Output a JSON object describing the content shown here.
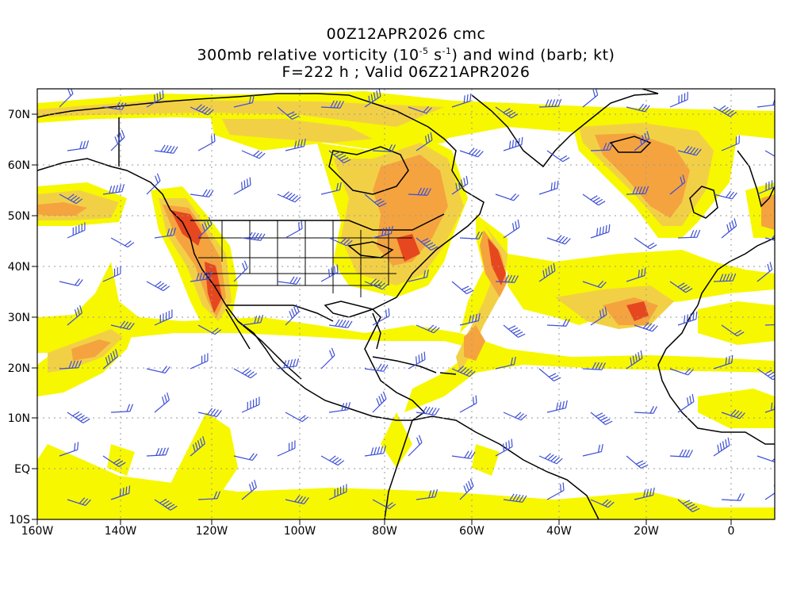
{
  "title": {
    "line1": "00Z12APR2026 cmc",
    "line2_pre": "300mb relative vorticity (10",
    "line2_sup1": "-5",
    "line2_mid": " s",
    "line2_sup2": "-1",
    "line2_post": ") and wind (barb; kt)",
    "line3": "F=222 h ; Valid 06Z21APR2026"
  },
  "axes": {
    "lon_ticks": [
      "160W",
      "140W",
      "120W",
      "100W",
      "80W",
      "60W",
      "40W",
      "20W",
      "0"
    ],
    "lat_ticks": [
      "70N",
      "60N",
      "50N",
      "40N",
      "30N",
      "20N",
      "10N",
      "EQ",
      "10S"
    ]
  },
  "colors": {
    "shade_light": "#f7f700",
    "shade_yellow": "#f4e24a",
    "shade_orange": "#f5a33f",
    "shade_dark": "#e6471f",
    "coast": "#000000",
    "barb": "#3d4fd6",
    "grid": "#9a9a9a"
  }
}
